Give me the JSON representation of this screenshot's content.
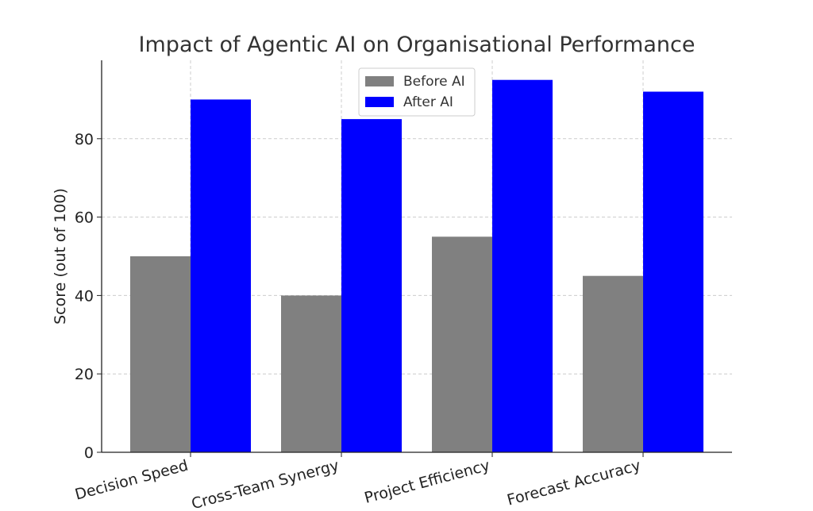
{
  "chart_data": {
    "type": "bar",
    "title": "Impact of Agentic AI on Organisational Performance",
    "xlabel": "",
    "ylabel": "Score (out of 100)",
    "categories": [
      "Decision Speed",
      "Cross-Team Synergy",
      "Project Efficiency",
      "Forecast Accuracy"
    ],
    "series": [
      {
        "name": "Before AI",
        "values": [
          50,
          40,
          55,
          45
        ],
        "color": "#808080"
      },
      {
        "name": "After AI",
        "values": [
          90,
          85,
          95,
          92
        ],
        "color": "#0000ff"
      }
    ],
    "ylim": [
      0,
      100
    ],
    "yticks": [
      0,
      20,
      40,
      60,
      80
    ],
    "grid": true,
    "legend": "top-center"
  }
}
